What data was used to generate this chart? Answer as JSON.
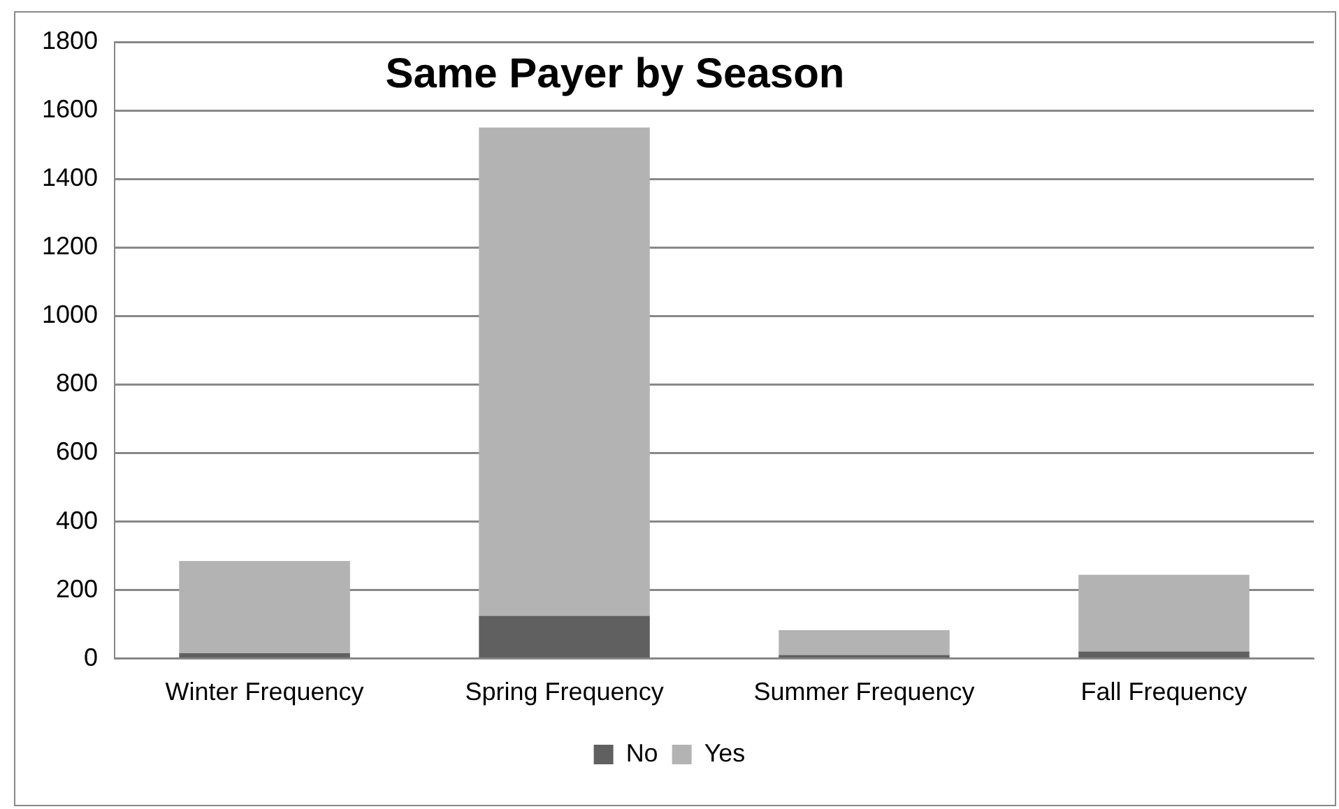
{
  "chart_data": {
    "type": "bar",
    "title": "Same Payer by Season",
    "categories": [
      "Winter Frequency",
      "Spring Frequency",
      "Summer Frequency",
      "Fall Frequency"
    ],
    "stacked": true,
    "series": [
      {
        "name": "No",
        "color": "#606060",
        "values": [
          16,
          125,
          11,
          21
        ]
      },
      {
        "name": "Yes",
        "color": "#b3b3b3",
        "values": [
          269,
          1425,
          72,
          224
        ]
      }
    ],
    "ylim": [
      0,
      1800
    ],
    "yticks": [
      0,
      200,
      400,
      600,
      800,
      1000,
      1200,
      1400,
      1600,
      1800
    ],
    "grid": "y",
    "legend": "bottom"
  }
}
